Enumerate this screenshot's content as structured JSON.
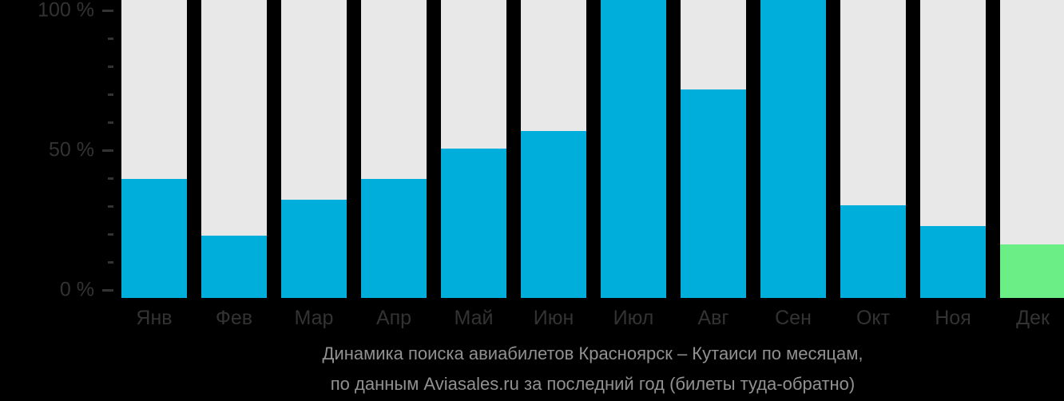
{
  "colors": {
    "background": "#000000",
    "bar_fill": "#00AEDB",
    "bar_highlight": "#6CEE87",
    "bar_track": "#E8E8E8",
    "axis_text": "#333333",
    "caption_text": "#919191"
  },
  "y_axis": {
    "major_labels": [
      {
        "text": "100 %",
        "value": 100
      },
      {
        "text": "50 %",
        "value": 50
      },
      {
        "text": "0 %",
        "value": 0
      }
    ],
    "tick_values": [
      0,
      10,
      20,
      30,
      40,
      50,
      60,
      70,
      80,
      90,
      100
    ],
    "major_tick_values": [
      0,
      50,
      100
    ]
  },
  "chart_data": {
    "type": "bar",
    "title": "Динамика поиска авиабилетов Красноярск – Кутаиси по месяцам,",
    "subtitle": "по данным Aviasales.ru за последний год (билеты туда-обратно)",
    "categories": [
      "Янв",
      "Фев",
      "Мар",
      "Апр",
      "Май",
      "Июн",
      "Июл",
      "Авг",
      "Сен",
      "Окт",
      "Ноя",
      "Дек"
    ],
    "values": [
      40,
      21,
      33,
      40,
      50,
      56,
      100,
      70,
      100,
      31,
      24,
      18
    ],
    "unit": "%",
    "ylim": [
      0,
      100
    ],
    "yticks_labeled": [
      0,
      50,
      100
    ],
    "grid": false,
    "legend": false,
    "track_bars_full_height": true,
    "highlight": {
      "index": 11,
      "category": "Дек",
      "color": "#6CEE87"
    }
  }
}
